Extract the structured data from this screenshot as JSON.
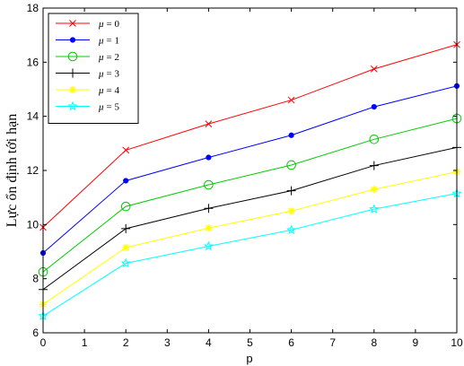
{
  "chart_data": {
    "type": "line",
    "title": "",
    "xlabel": "p",
    "ylabel": "Lực ổn định tới hạn",
    "xlim": [
      0,
      10
    ],
    "ylim": [
      6,
      18
    ],
    "xticks": [
      0,
      1,
      2,
      3,
      4,
      5,
      6,
      7,
      8,
      9,
      10
    ],
    "yticks": [
      6,
      8,
      10,
      12,
      14,
      16,
      18
    ],
    "grid": false,
    "legend_position": "top-left",
    "x": [
      0,
      2,
      4,
      6,
      8,
      10
    ],
    "series": [
      {
        "name": "μ = 0",
        "mu_symbol": "μ",
        "mu_value": "= 0",
        "color": "#ff0000",
        "marker": "x",
        "values": [
          9.9,
          12.75,
          13.72,
          14.6,
          15.75,
          16.65
        ]
      },
      {
        "name": "μ = 1",
        "mu_symbol": "μ",
        "mu_value": "= 1",
        "color": "#0000ff",
        "marker": "dot",
        "values": [
          8.95,
          11.62,
          12.48,
          13.3,
          14.35,
          15.12
        ]
      },
      {
        "name": "μ = 2",
        "mu_symbol": "μ",
        "mu_value": "= 2",
        "color": "#00cc00",
        "marker": "circle",
        "values": [
          8.25,
          10.67,
          11.47,
          12.2,
          13.15,
          13.92
        ]
      },
      {
        "name": "μ = 3",
        "mu_symbol": "μ",
        "mu_value": "= 3",
        "color": "#000000",
        "marker": "plus",
        "values": [
          7.6,
          9.85,
          10.6,
          11.25,
          12.18,
          12.85
        ]
      },
      {
        "name": "μ = 4",
        "mu_symbol": "μ",
        "mu_value": "= 4",
        "color": "#ffff00",
        "marker": "star",
        "values": [
          7.05,
          9.15,
          9.87,
          10.5,
          11.3,
          11.95
        ]
      },
      {
        "name": "μ = 5",
        "mu_symbol": "μ",
        "mu_value": "= 5",
        "color": "#00ffff",
        "marker": "hexstar",
        "values": [
          6.62,
          8.57,
          9.2,
          9.8,
          10.57,
          11.15
        ]
      }
    ]
  }
}
